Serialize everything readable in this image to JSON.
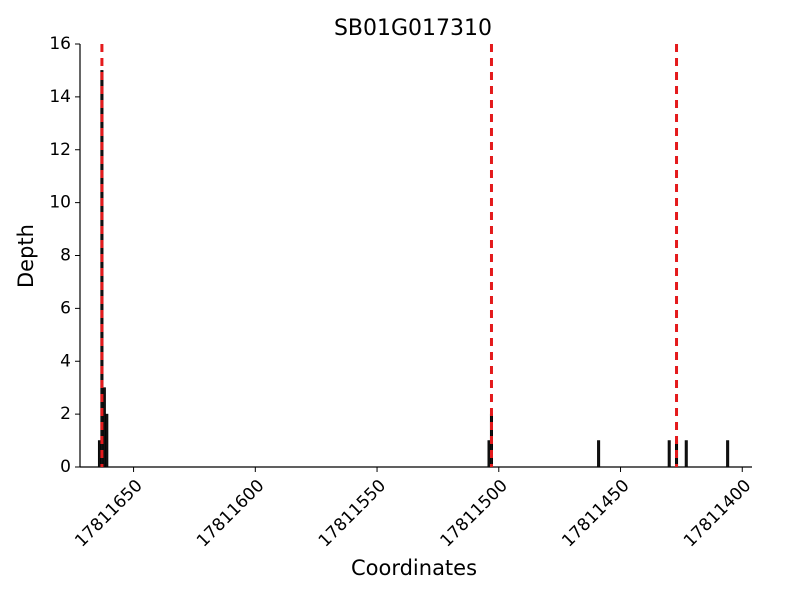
{
  "chart_data": {
    "type": "bar",
    "title": "SB01G017310",
    "xlabel": "Coordinates",
    "ylabel": "Depth",
    "x": [
      17811664,
      17811663,
      17811662,
      17811661,
      17811504,
      17811503,
      17811459,
      17811430,
      17811427,
      17811423,
      17811406
    ],
    "values": [
      1,
      15,
      3,
      2,
      1,
      2,
      1,
      1,
      1,
      1,
      1
    ],
    "color": "#111111",
    "xlim": [
      17811672,
      17811396
    ],
    "xticks": [
      17811650,
      17811600,
      17811550,
      17811500,
      17811450,
      17811400
    ],
    "ylim": [
      0,
      16
    ],
    "yticks": [
      0,
      2,
      4,
      6,
      8,
      10,
      12,
      14,
      16
    ],
    "vlines": [
      17811663,
      17811503,
      17811427
    ],
    "vline_color": "#e41a1c"
  }
}
